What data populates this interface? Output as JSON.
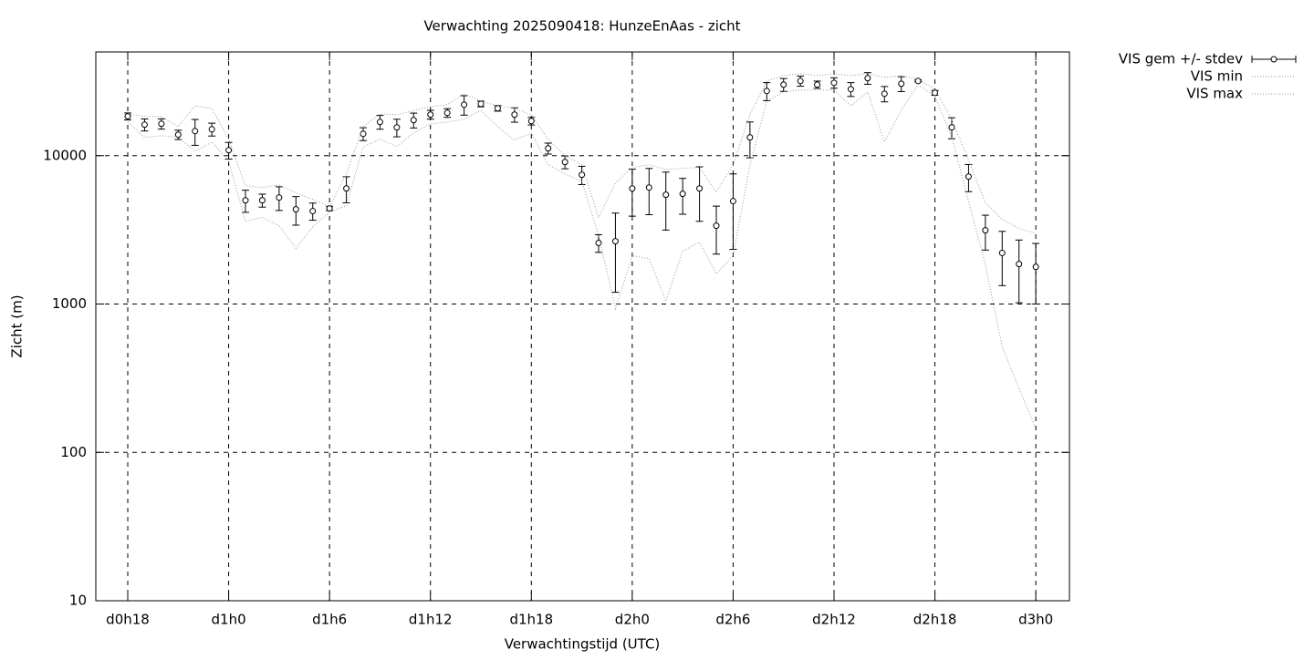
{
  "chart_data": {
    "type": "errorbar",
    "title": "Verwachting 2025090418: HunzeEnAas - zicht",
    "x_label": "Verwachtingstijd (UTC)",
    "y_label": "Zicht (m)",
    "x": [
      18,
      19,
      20,
      21,
      22,
      23,
      24,
      25,
      26,
      27,
      28,
      29,
      30,
      31,
      32,
      33,
      34,
      35,
      36,
      37,
      38,
      39,
      40,
      41,
      42,
      43,
      44,
      45,
      46,
      47,
      48,
      49,
      50,
      51,
      52,
      53,
      54,
      55,
      56,
      57,
      58,
      59,
      60,
      61,
      62,
      63,
      64,
      65,
      66,
      67,
      68,
      69,
      70,
      71,
      72
    ],
    "xlim": [
      16.1,
      74
    ],
    "xticks": [
      {
        "value": 18,
        "label": "d0h18"
      },
      {
        "value": 24,
        "label": "d1h0"
      },
      {
        "value": 30,
        "label": "d1h6"
      },
      {
        "value": 36,
        "label": "d1h12"
      },
      {
        "value": 42,
        "label": "d1h18"
      },
      {
        "value": 48,
        "label": "d2h0"
      },
      {
        "value": 54,
        "label": "d2h6"
      },
      {
        "value": 60,
        "label": "d2h12"
      },
      {
        "value": 66,
        "label": "d2h18"
      },
      {
        "value": 72,
        "label": "d3h0"
      }
    ],
    "ylim": [
      10,
      50000
    ],
    "yticks": [
      10,
      100,
      1000,
      10000
    ],
    "y_scale": "log",
    "grid": true,
    "legend_position": "outside-top-right",
    "series": [
      {
        "name": "VIS gem +/- stdev",
        "style": "errorbars",
        "color": "#000000",
        "values": [
          18400,
          16170,
          16400,
          13840,
          14640,
          15060,
          10880,
          5000,
          5000,
          5220,
          4350,
          4230,
          4410,
          6010,
          14030,
          16870,
          15500,
          17360,
          18910,
          19430,
          22060,
          22340,
          20850,
          18910,
          17110,
          11200,
          9060,
          7430,
          2580,
          2650,
          6010,
          6100,
          5450,
          5530,
          6010,
          3370,
          4935,
          13270,
          27280,
          30110,
          31880,
          30110,
          30980,
          28060,
          33270,
          26150,
          30540,
          31880,
          26520,
          15500,
          7220,
          3140,
          2210,
          1860,
          1780
        ],
        "errors": [
          1000,
          1500,
          1300,
          1000,
          2900,
          1500,
          1400,
          850,
          500,
          950,
          950,
          560,
          150,
          1200,
          1400,
          1800,
          2100,
          2000,
          1300,
          1300,
          3300,
          1000,
          900,
          2100,
          1000,
          950,
          900,
          1050,
          350,
          1450,
          2100,
          2100,
          2300,
          1500,
          2400,
          1200,
          2600,
          3600,
          3800,
          3000,
          2500,
          1700,
          2500,
          3000,
          3000,
          3100,
          3500,
          500,
          1000,
          2500,
          1500,
          830,
          880,
          840,
          780
        ]
      },
      {
        "name": "VIS min",
        "style": "dotted",
        "color": "#999999",
        "values": [
          16870,
          13270,
          13650,
          13270,
          10730,
          12360,
          9180,
          3620,
          3830,
          3370,
          2370,
          3310,
          4170,
          4600,
          11520,
          12900,
          11520,
          14240,
          16400,
          16870,
          17600,
          20200,
          15700,
          12710,
          14240,
          8680,
          7540,
          6720,
          2890,
          930,
          2120,
          2020,
          1050,
          2270,
          2610,
          1600,
          2120,
          8680,
          23300,
          26900,
          27700,
          27700,
          27700,
          21700,
          26900,
          12360,
          20200,
          30100,
          25100,
          13270,
          4935,
          1835,
          515,
          270,
          145
        ]
      },
      {
        "name": "VIS max",
        "style": "dotted",
        "color": "#999999",
        "values": [
          19100,
          18400,
          18400,
          15700,
          21700,
          20800,
          12900,
          6270,
          6100,
          6360,
          5600,
          5080,
          4530,
          7540,
          15700,
          19100,
          18900,
          20200,
          21400,
          22060,
          26150,
          23300,
          21700,
          20800,
          18900,
          12900,
          10000,
          8680,
          3830,
          6540,
          8330,
          8680,
          8080,
          8210,
          8330,
          5680,
          8680,
          18900,
          31880,
          34600,
          35700,
          34600,
          35700,
          34600,
          35700,
          33700,
          34600,
          32800,
          28000,
          17600,
          9310,
          4800,
          3720,
          3230,
          3000
        ]
      }
    ]
  }
}
